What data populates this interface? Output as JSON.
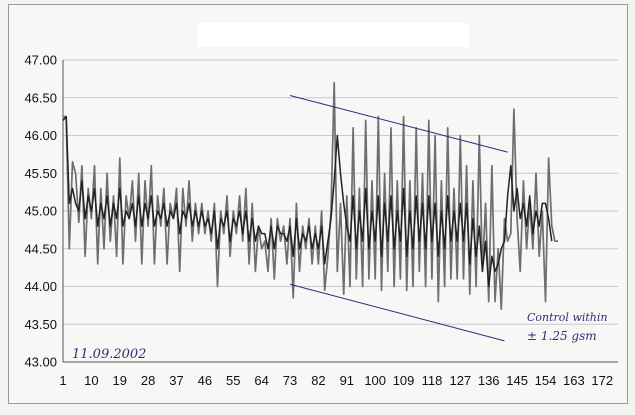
{
  "chart_data": {
    "type": "line",
    "title": "",
    "xlabel": "",
    "ylabel": "",
    "ylim": [
      43.0,
      47.0
    ],
    "yticks": [
      "43.00",
      "43.50",
      "44.00",
      "44.50",
      "45.00",
      "45.50",
      "46.00",
      "46.50",
      "47.00"
    ],
    "xticks": [
      "1",
      "10",
      "19",
      "28",
      "37",
      "46",
      "55",
      "64",
      "73",
      "82",
      "91",
      "100",
      "109",
      "118",
      "127",
      "136",
      "145",
      "154",
      "163",
      "172"
    ],
    "xlim": [
      1,
      177
    ],
    "grid": "horizontal",
    "legend": "none",
    "series": [
      {
        "color": "#6e6e6e",
        "values": [
          46.25,
          46.25,
          44.5,
          45.65,
          45.5,
          44.85,
          45.6,
          44.4,
          45.3,
          44.9,
          45.6,
          44.3,
          45.3,
          44.5,
          45.5,
          44.6,
          45.2,
          44.4,
          45.7,
          44.3,
          45.2,
          44.9,
          45.4,
          44.6,
          45.5,
          44.3,
          45.4,
          44.8,
          45.6,
          44.3,
          45.2,
          44.8,
          45.3,
          44.3,
          45.1,
          44.9,
          45.3,
          44.2,
          45.3,
          44.8,
          45.4,
          44.6,
          45.1,
          44.7,
          45.1,
          44.7,
          45.0,
          44.6,
          45.1,
          44.0,
          45.0,
          44.7,
          45.2,
          44.4,
          45.0,
          44.7,
          45.2,
          44.6,
          45.3,
          44.3,
          45.1,
          44.2,
          44.8,
          44.5,
          44.6,
          44.2,
          44.9,
          44.1,
          44.9,
          44.6,
          44.8,
          44.3,
          44.9,
          43.85,
          45.1,
          44.2,
          44.8,
          44.5,
          44.9,
          44.3,
          44.8,
          44.3,
          45.0,
          43.95,
          44.4,
          45.0,
          46.7,
          44.2,
          45.1,
          43.9,
          45.2,
          44.0,
          46.1,
          44.1,
          45.3,
          44.0,
          46.2,
          44.1,
          45.4,
          44.1,
          46.25,
          43.95,
          45.5,
          44.2,
          46.1,
          44.0,
          45.4,
          44.1,
          46.25,
          43.95,
          45.4,
          44.0,
          46.1,
          44.2,
          45.5,
          44.0,
          46.2,
          44.1,
          46.0,
          43.8,
          45.4,
          44.0,
          46.1,
          44.1,
          45.3,
          44.1,
          46.0,
          44.1,
          45.6,
          43.9,
          45.4,
          44.0,
          46.0,
          44.2,
          45.1,
          43.8,
          45.6,
          43.8,
          44.5,
          43.7,
          44.9,
          44.6,
          44.7,
          46.35,
          44.9,
          44.2,
          45.4,
          44.5,
          45.1,
          44.5,
          45.5,
          44.4,
          45.0,
          43.8,
          45.7,
          44.8,
          44.6,
          44.6
        ]
      },
      {
        "color": "#222222",
        "values": [
          46.2,
          46.25,
          45.1,
          45.3,
          45.1,
          45.0,
          45.4,
          44.9,
          45.2,
          45.0,
          45.3,
          44.8,
          45.1,
          44.9,
          45.2,
          44.8,
          45.1,
          44.9,
          45.3,
          44.8,
          45.0,
          44.9,
          45.1,
          44.8,
          45.2,
          44.8,
          45.1,
          44.9,
          45.2,
          44.8,
          45.0,
          44.9,
          45.1,
          44.8,
          45.0,
          44.9,
          45.1,
          44.7,
          45.0,
          44.9,
          45.1,
          44.8,
          45.0,
          44.8,
          45.0,
          44.8,
          44.9,
          44.7,
          45.0,
          44.5,
          44.9,
          44.8,
          45.0,
          44.6,
          44.9,
          44.8,
          45.0,
          44.7,
          45.0,
          44.6,
          44.9,
          44.6,
          44.8,
          44.7,
          44.7,
          44.5,
          44.8,
          44.5,
          44.8,
          44.7,
          44.7,
          44.6,
          44.8,
          44.4,
          44.9,
          44.5,
          44.7,
          44.6,
          44.8,
          44.5,
          44.7,
          44.5,
          44.8,
          44.3,
          44.6,
          44.9,
          45.4,
          46.0,
          45.5,
          45.1,
          44.8,
          44.6,
          45.2,
          44.5,
          45.0,
          44.6,
          45.3,
          44.5,
          45.0,
          44.6,
          45.2,
          44.4,
          45.1,
          44.6,
          45.2,
          44.5,
          45.0,
          44.6,
          45.3,
          44.4,
          45.0,
          44.5,
          45.2,
          44.6,
          45.1,
          44.5,
          45.2,
          44.6,
          45.1,
          44.4,
          45.0,
          44.5,
          45.2,
          44.6,
          45.0,
          44.6,
          45.1,
          44.6,
          45.1,
          44.3,
          44.9,
          44.4,
          44.8,
          44.2,
          44.6,
          44.0,
          44.4,
          44.2,
          44.3,
          44.5,
          44.6,
          45.2,
          45.6,
          45.0,
          45.3,
          44.9,
          45.1,
          44.8,
          45.2,
          44.7,
          45.0,
          44.8,
          45.1,
          45.1,
          44.9,
          44.6
        ]
      }
    ],
    "annotations": {
      "date_text": "11.09.2002",
      "note_line1": "Control within",
      "note_line2": "± 1.25 gsm",
      "upper_trend": {
        "x": [
          73,
          142
        ],
        "y": [
          46.53,
          45.78
        ]
      },
      "lower_trend": {
        "x": [
          73,
          141
        ],
        "y": [
          44.03,
          43.28
        ]
      }
    }
  }
}
